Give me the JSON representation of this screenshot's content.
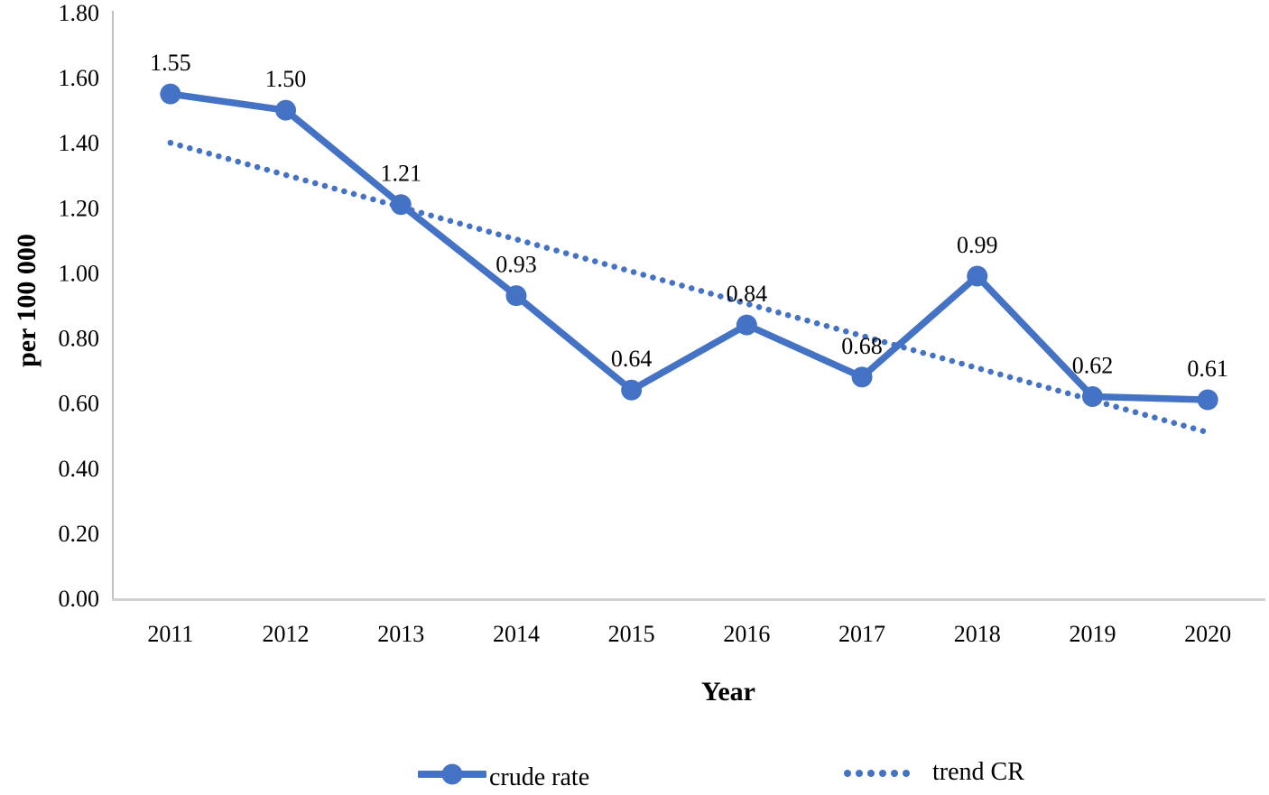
{
  "chart_data": {
    "type": "line",
    "title": "",
    "categories": [
      "2011",
      "2012",
      "2013",
      "2014",
      "2015",
      "2016",
      "2017",
      "2018",
      "2019",
      "2020"
    ],
    "series": [
      {
        "name": "crude rate",
        "values": [
          1.55,
          1.5,
          1.21,
          0.93,
          0.64,
          0.84,
          0.68,
          0.99,
          0.62,
          0.61
        ],
        "labels": [
          "1.55",
          "1.50",
          "1.21",
          "0.93",
          "0.64",
          "0.84",
          "0.68",
          "0.99",
          "0.62",
          "0.61"
        ],
        "style": "solid-with-markers"
      }
    ],
    "trend": {
      "name": "trend CR",
      "start_value": 1.4,
      "end_value": 0.51,
      "style": "dotted"
    },
    "xlabel": "Year",
    "ylabel": "per 100 000",
    "ylim": [
      0.0,
      1.8
    ],
    "ytick_step": 0.2,
    "yticks": [
      "0.00",
      "0.20",
      "0.40",
      "0.60",
      "0.80",
      "1.00",
      "1.20",
      "1.40",
      "1.60",
      "1.80"
    ],
    "grid": false,
    "legend_position": "bottom"
  },
  "colors": {
    "series_blue": "#4472C4",
    "y_axis_line": "#BFBFBF",
    "x_axis_line": "#D2D0D0",
    "text": "#000000"
  }
}
